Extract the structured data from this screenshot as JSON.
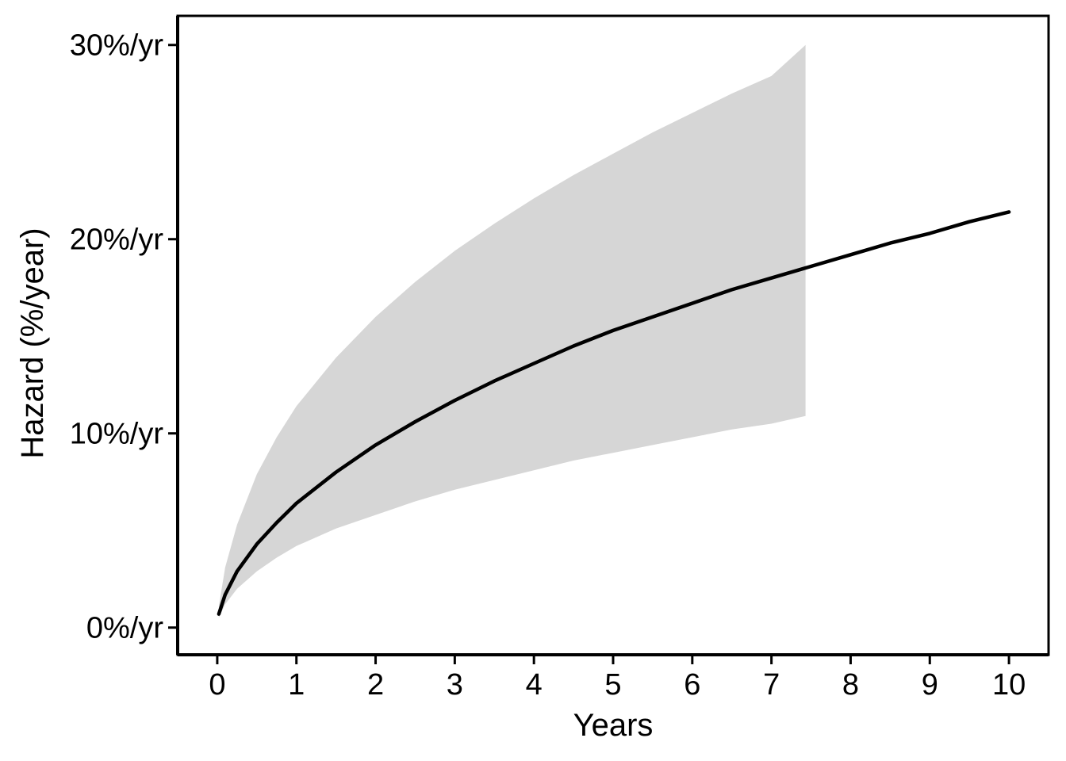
{
  "chart_data": {
    "type": "line",
    "title": "",
    "xlabel": "Years",
    "ylabel": "Hazard (%/year)",
    "xlim": [
      -0.5,
      10.5
    ],
    "ylim": [
      -1.4,
      31.5
    ],
    "x_ticks": [
      0,
      1,
      2,
      3,
      4,
      5,
      6,
      7,
      8,
      9,
      10
    ],
    "x_tick_labels": [
      "0",
      "1",
      "2",
      "3",
      "4",
      "5",
      "6",
      "7",
      "8",
      "9",
      "10"
    ],
    "y_ticks": [
      0,
      10,
      20,
      30
    ],
    "y_tick_labels": [
      "0%/yr",
      "10%/yr",
      "20%/yr",
      "30%/yr"
    ],
    "grid": false,
    "legend": "none",
    "colors": {
      "line": "#000000",
      "band": "#d6d6d6",
      "axis": "#000000"
    },
    "series": [
      {
        "kind": "line",
        "x": [
          0.02,
          0.1,
          0.25,
          0.5,
          0.75,
          1,
          1.5,
          2,
          2.5,
          3,
          3.5,
          4,
          4.5,
          5,
          5.5,
          6,
          6.5,
          7,
          7.5,
          8,
          8.5,
          9,
          9.5,
          10
        ],
        "y": [
          0.7,
          1.7,
          2.9,
          4.3,
          5.4,
          6.4,
          8.0,
          9.4,
          10.6,
          11.7,
          12.7,
          13.6,
          14.5,
          15.3,
          16.0,
          16.7,
          17.4,
          18.0,
          18.6,
          19.2,
          19.8,
          20.3,
          20.9,
          21.4
        ]
      },
      {
        "kind": "band",
        "x": [
          0.02,
          0.1,
          0.25,
          0.5,
          0.75,
          1,
          1.5,
          2,
          2.5,
          3,
          3.5,
          4,
          4.5,
          5,
          5.5,
          6,
          6.5,
          7,
          7.43
        ],
        "lower": [
          0.5,
          1.2,
          2.0,
          2.9,
          3.6,
          4.2,
          5.1,
          5.8,
          6.5,
          7.1,
          7.6,
          8.1,
          8.6,
          9.0,
          9.4,
          9.8,
          10.2,
          10.5,
          10.9
        ],
        "upper": [
          1.1,
          3.1,
          5.3,
          7.9,
          9.8,
          11.4,
          13.9,
          16.0,
          17.8,
          19.4,
          20.8,
          22.1,
          23.3,
          24.4,
          25.5,
          26.5,
          27.5,
          28.4,
          30.0
        ]
      }
    ]
  }
}
